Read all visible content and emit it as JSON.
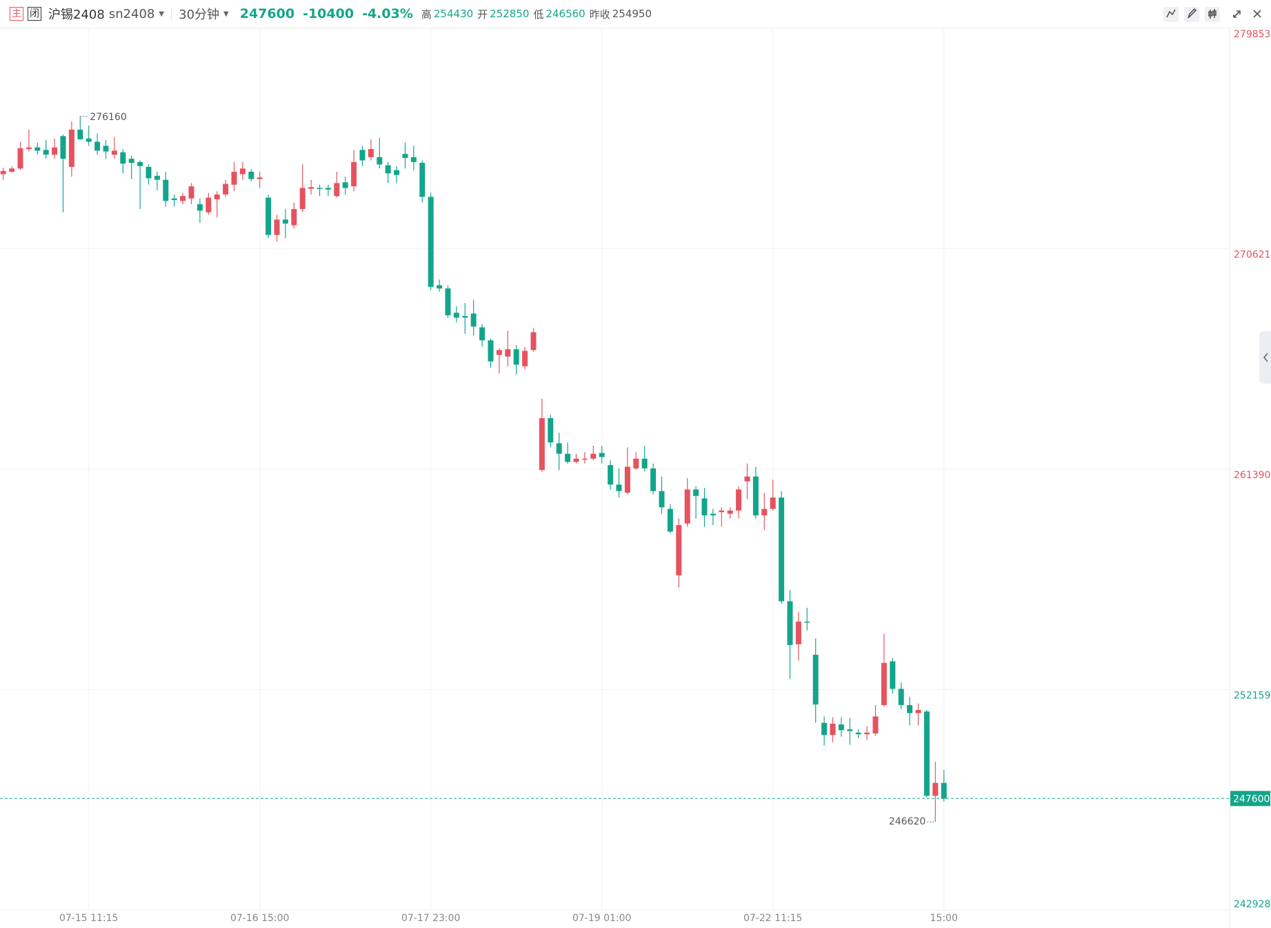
{
  "header": {
    "badge_main": "主",
    "badge_closed": "闭",
    "name": "沪锡2408",
    "code": "sn2408",
    "period": "30分钟",
    "change": "-10400",
    "change_pct": "-4.03%",
    "high_label": "高",
    "high": "254430",
    "open_label": "开",
    "open": "252850",
    "low_label": "低",
    "low": "246560",
    "prev_close_label": "昨收"
  },
  "chart_data": {
    "type": "candlestick",
    "up_color": "#e5535f",
    "down_color": "#13a58b",
    "prev_close": 254950,
    "ylim": [
      242928,
      279853
    ],
    "yticks": [
      242928,
      252159,
      261390,
      270621,
      279853
    ],
    "grid": true,
    "categories": [
      null,
      null,
      null,
      null,
      null,
      null,
      null,
      null,
      null,
      null,
      "07-15 11:15",
      null,
      null,
      null,
      null,
      null,
      null,
      null,
      null,
      null,
      null,
      null,
      null,
      null,
      null,
      null,
      null,
      null,
      null,
      null,
      "07-16 15:00",
      null,
      null,
      null,
      null,
      null,
      null,
      null,
      null,
      null,
      null,
      null,
      null,
      null,
      null,
      null,
      null,
      null,
      null,
      null,
      "07-17 23:00",
      null,
      null,
      null,
      null,
      null,
      null,
      null,
      null,
      null,
      null,
      null,
      null,
      null,
      null,
      null,
      null,
      null,
      null,
      null,
      "07-19 01:00",
      null,
      null,
      null,
      null,
      null,
      null,
      null,
      null,
      null,
      null,
      null,
      null,
      null,
      null,
      null,
      null,
      null,
      null,
      null,
      "07-22 11:15",
      null,
      null,
      null,
      null,
      null,
      null,
      null,
      null,
      null,
      null,
      null,
      null,
      null,
      null,
      null,
      null,
      null,
      null,
      null,
      "15:00"
    ],
    "open": [
      273744,
      273847,
      273981,
      274796,
      274864,
      274762,
      274559,
      275339,
      274050,
      275610,
      275237,
      275101,
      274932,
      274559,
      274660,
      274389,
      274253,
      274050,
      273676,
      273506,
      272726,
      272624,
      272726,
      272488,
      272148,
      272691,
      272895,
      273302,
      273744,
      273846,
      273541,
      272760,
      271198,
      271843,
      271605,
      272284,
      273132,
      273167,
      273167,
      272828,
      273404,
      273234,
      274762,
      274457,
      274457,
      274117,
      273913,
      274592,
      274457,
      274219,
      272793,
      269094,
      268958,
      267940,
      267804,
      267906,
      267329,
      266786,
      266175,
      266107,
      266412,
      265700,
      266378,
      261356,
      263528,
      262476,
      262035,
      261695,
      261797,
      261831,
      262069,
      261559,
      260745,
      260406,
      261424,
      261831,
      261424,
      260473,
      259726,
      256944,
      259116,
      260541,
      260168,
      259523,
      259591,
      259523,
      259659,
      260880,
      261084,
      259455,
      259726,
      260202,
      255858,
      254059,
      255009,
      253617,
      250767,
      250257,
      250699,
      250495,
      250359,
      250291,
      250325,
      251513,
      253346,
      252192,
      251513,
      251174,
      251241,
      247711,
      248254
    ],
    "high": [
      274016,
      274083,
      275101,
      275610,
      275068,
      275169,
      275237,
      275406,
      275950,
      276160,
      275780,
      275440,
      275169,
      275305,
      274796,
      274525,
      274321,
      274151,
      273846,
      273846,
      272895,
      272963,
      273370,
      272726,
      272963,
      273031,
      273506,
      274253,
      274253,
      273948,
      273846,
      272895,
      272046,
      272284,
      272556,
      274151,
      273506,
      273302,
      273302,
      273846,
      273642,
      274762,
      274932,
      275203,
      275270,
      274253,
      274083,
      275068,
      274932,
      274321,
      272963,
      269332,
      269094,
      268212,
      268348,
      268484,
      267465,
      266854,
      266446,
      267193,
      266582,
      266514,
      267295,
      264342,
      263664,
      262917,
      262510,
      262035,
      262103,
      262374,
      262374,
      261763,
      261424,
      262306,
      262103,
      262374,
      261627,
      261084,
      259930,
      259319,
      261016,
      260677,
      260609,
      259726,
      259794,
      259794,
      260677,
      261627,
      261492,
      260405,
      260948,
      260473,
      256333,
      255416,
      255586,
      254297,
      251038,
      251004,
      251004,
      250970,
      250495,
      250631,
      251513,
      254500,
      253482,
      252464,
      251852,
      251581,
      251309,
      249137,
      248797
    ],
    "low": [
      273506,
      273813,
      273914,
      274694,
      274559,
      274389,
      274389,
      272150,
      273642,
      275203,
      274932,
      274559,
      274389,
      274389,
      273778,
      273541,
      272284,
      273302,
      273065,
      272386,
      272386,
      272488,
      272488,
      271707,
      272046,
      271944,
      272793,
      273031,
      273506,
      273438,
      273167,
      271062,
      270927,
      271062,
      271469,
      272148,
      272895,
      272828,
      272828,
      272760,
      272895,
      273031,
      274083,
      274321,
      273982,
      273370,
      273370,
      273981,
      273913,
      272556,
      268891,
      268823,
      267736,
      267533,
      267057,
      266989,
      266514,
      265632,
      265394,
      265700,
      265360,
      265564,
      266310,
      261288,
      262306,
      261356,
      261627,
      261627,
      261627,
      261763,
      261627,
      260541,
      260202,
      260337,
      261356,
      261288,
      260337,
      259523,
      258708,
      256435,
      258980,
      259319,
      258980,
      259048,
      258980,
      259319,
      259319,
      260134,
      259319,
      258844,
      259658,
      255756,
      252600,
      253380,
      254636,
      250767,
      249816,
      249951,
      250190,
      249849,
      250121,
      250053,
      250224,
      251445,
      251989,
      251343,
      250665,
      250665,
      247643,
      246620,
      247473
    ],
    "close": [
      273880,
      273981,
      274830,
      274864,
      274728,
      274559,
      274864,
      274389,
      275610,
      275203,
      275101,
      274728,
      274694,
      274728,
      274185,
      274219,
      274083,
      273574,
      273506,
      272624,
      272658,
      272828,
      273235,
      272216,
      272760,
      272895,
      273336,
      273846,
      273981,
      273541,
      273608,
      271198,
      271843,
      271673,
      272284,
      273167,
      273200,
      273132,
      273098,
      273370,
      273167,
      274253,
      274321,
      274796,
      274151,
      273778,
      273710,
      274423,
      274253,
      272793,
      269026,
      268958,
      267838,
      267736,
      267736,
      267363,
      266786,
      265903,
      266378,
      266412,
      265768,
      266344,
      267125,
      263528,
      262510,
      262035,
      261695,
      261831,
      261831,
      262035,
      261899,
      260745,
      260473,
      261492,
      261831,
      261424,
      260473,
      259794,
      258776,
      259048,
      260541,
      260270,
      259455,
      259455,
      259659,
      259659,
      260541,
      261084,
      259455,
      259726,
      260202,
      255858,
      254025,
      255009,
      254975,
      251534,
      250257,
      250732,
      250461,
      250427,
      250291,
      250359,
      251038,
      253278,
      252192,
      251513,
      251174,
      251309,
      247711,
      248254,
      247600
    ]
  }
}
